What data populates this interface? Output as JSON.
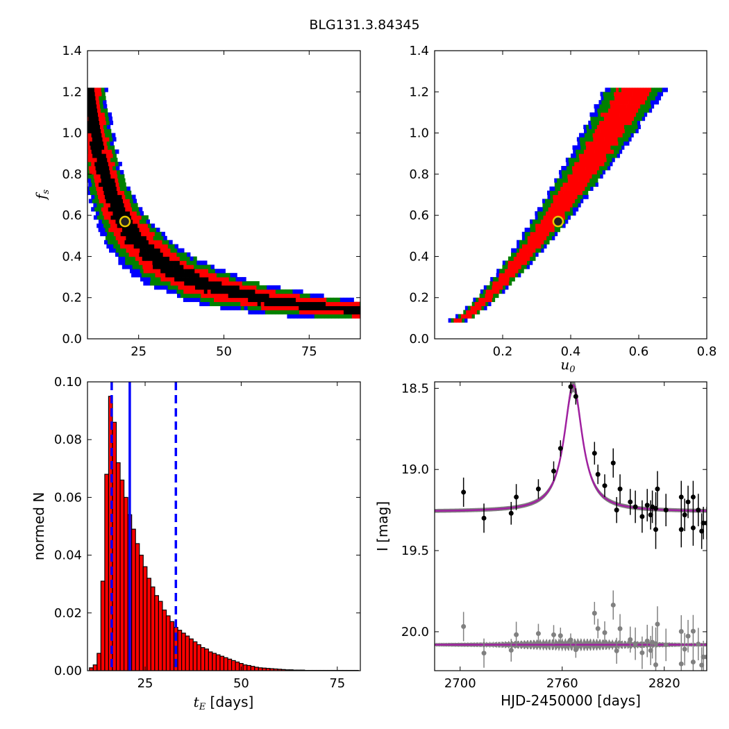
{
  "title": "BLG131.3.84345",
  "colors": {
    "sigma1": "#000000",
    "sigma2": "#ff0000",
    "sigma3": "#008000",
    "sigma4": "#0000ff",
    "bestfit_face": "#222222",
    "bestfit_edge": "#e8c800",
    "hist_bar": "#ff0000",
    "median_line": "#0000ff",
    "data": "#000000",
    "model_fill": "#808080",
    "model_line": "#a020a0",
    "residual": "#808080"
  },
  "chart_data": [
    {
      "id": "fs_vs_tE",
      "type": "heatmap",
      "xlabel": "",
      "ylabel": "f",
      "ylabel_sub": "s",
      "xlim": [
        10,
        90
      ],
      "ylim": [
        0.0,
        1.4
      ],
      "xticks": [
        "25",
        "50",
        "75"
      ],
      "xtick_values": [
        25,
        50,
        75
      ],
      "yticks": [
        "0.0",
        "0.2",
        "0.4",
        "0.6",
        "0.8",
        "1.0",
        "1.2",
        "1.4"
      ],
      "ytick_values": [
        0.0,
        0.2,
        0.4,
        0.6,
        0.8,
        1.0,
        1.2,
        1.4
      ],
      "relation": "f_s ≈ 11.4 / t_E (hyperbolic)",
      "fs_range": [
        0.08,
        1.2
      ],
      "confidence_levels": [
        "1σ (black)",
        "2σ (red)",
        "3σ (green)",
        ">3σ (blue)"
      ],
      "best_fit": {
        "x": 21,
        "y": 0.57
      }
    },
    {
      "id": "fs_vs_u0",
      "type": "heatmap",
      "xlabel": "u",
      "xlabel_sub": "0",
      "ylabel": "",
      "xlim": [
        0.0,
        0.8
      ],
      "ylim": [
        0.0,
        1.4
      ],
      "xticks": [
        "0.2",
        "0.4",
        "0.6",
        "0.8"
      ],
      "xtick_values": [
        0.2,
        0.4,
        0.6,
        0.8
      ],
      "yticks": [
        "0.0",
        "0.2",
        "0.4",
        "0.6",
        "0.8",
        "1.0",
        "1.2",
        "1.4"
      ],
      "ytick_values": [
        0.0,
        0.2,
        0.4,
        0.6,
        0.8,
        1.0,
        1.2,
        1.4
      ],
      "relation": "monotonic increasing, u0 0.06→0.68 as f_s 0.08→1.2",
      "fs_range": [
        0.08,
        1.2
      ],
      "best_fit": {
        "x": 0.363,
        "y": 0.57
      }
    },
    {
      "id": "tE_histogram",
      "type": "bar",
      "xlabel": "t",
      "xlabel_sub": "E",
      "xlabel_suffix": "[days]",
      "ylabel": "normed N",
      "xlim": [
        10,
        81
      ],
      "ylim": [
        0.0,
        0.1
      ],
      "xticks": [
        "25",
        "50",
        "75"
      ],
      "xtick_values": [
        25,
        50,
        75
      ],
      "yticks": [
        "0.00",
        "0.02",
        "0.04",
        "0.06",
        "0.08",
        "0.10"
      ],
      "ytick_values": [
        0.0,
        0.02,
        0.04,
        0.06,
        0.08,
        0.1
      ],
      "bin_start": 10.5,
      "bin_width": 1.0,
      "values": [
        0.001,
        0.002,
        0.006,
        0.031,
        0.068,
        0.095,
        0.086,
        0.072,
        0.066,
        0.06,
        0.054,
        0.049,
        0.044,
        0.04,
        0.036,
        0.032,
        0.029,
        0.026,
        0.024,
        0.021,
        0.019,
        0.017,
        0.015,
        0.014,
        0.013,
        0.012,
        0.011,
        0.01,
        0.009,
        0.008,
        0.0075,
        0.0065,
        0.006,
        0.0055,
        0.005,
        0.0045,
        0.004,
        0.0035,
        0.003,
        0.0025,
        0.002,
        0.0018,
        0.0015,
        0.0012,
        0.001,
        0.0009,
        0.0008,
        0.0007,
        0.0006,
        0.0005,
        0.0004,
        0.0003,
        0.0003,
        0.0002,
        0.0002,
        0.0002,
        0.0001,
        0.0001,
        0.0001,
        0.0001,
        0.0001,
        0.0001,
        0.0001,
        0.0001,
        0.0001,
        0.0001,
        0.0001,
        0.0001,
        0.0001,
        0.0001
      ],
      "median": 21.0,
      "interval": [
        16.3,
        33.0
      ]
    },
    {
      "id": "lightcurve",
      "type": "scatter",
      "xlabel": "HJD-2450000 [days]",
      "ylabel": "I [mag]",
      "xlim": [
        2685,
        2845
      ],
      "ylim": [
        20.24,
        18.46
      ],
      "xticks": [
        "2700",
        "2760",
        "2820"
      ],
      "xtick_values": [
        2700,
        2760,
        2820
      ],
      "yticks": [
        "18.5",
        "19.0",
        "19.5",
        "20.0"
      ],
      "ytick_values": [
        18.5,
        19.0,
        19.5,
        20.0
      ],
      "model": {
        "baseline": 19.26,
        "t0": 2766.5,
        "peak_mag": 18.48,
        "width": 6.5
      },
      "residual_offset": 20.08,
      "data": [
        {
          "t": 2702,
          "m": 19.14,
          "e": 0.09
        },
        {
          "t": 2714,
          "m": 19.3,
          "e": 0.09
        },
        {
          "t": 2730,
          "m": 19.27,
          "e": 0.07
        },
        {
          "t": 2733,
          "m": 19.17,
          "e": 0.08
        },
        {
          "t": 2746,
          "m": 19.12,
          "e": 0.06
        },
        {
          "t": 2755,
          "m": 19.01,
          "e": 0.06
        },
        {
          "t": 2759,
          "m": 18.87,
          "e": 0.05
        },
        {
          "t": 2765,
          "m": 18.49,
          "e": 0.04
        },
        {
          "t": 2768,
          "m": 18.55,
          "e": 0.05
        },
        {
          "t": 2779,
          "m": 18.9,
          "e": 0.07
        },
        {
          "t": 2781,
          "m": 19.03,
          "e": 0.06
        },
        {
          "t": 2785,
          "m": 19.1,
          "e": 0.07
        },
        {
          "t": 2790,
          "m": 18.96,
          "e": 0.09
        },
        {
          "t": 2792,
          "m": 19.25,
          "e": 0.08
        },
        {
          "t": 2794,
          "m": 19.12,
          "e": 0.09
        },
        {
          "t": 2800,
          "m": 19.2,
          "e": 0.08
        },
        {
          "t": 2803,
          "m": 19.23,
          "e": 0.1
        },
        {
          "t": 2807,
          "m": 19.29,
          "e": 0.1
        },
        {
          "t": 2810,
          "m": 19.22,
          "e": 0.1
        },
        {
          "t": 2812,
          "m": 19.28,
          "e": 0.09
        },
        {
          "t": 2813,
          "m": 19.23,
          "e": 0.1
        },
        {
          "t": 2815,
          "m": 19.24,
          "e": 0.1
        },
        {
          "t": 2815,
          "m": 19.37,
          "e": 0.12
        },
        {
          "t": 2816,
          "m": 19.12,
          "e": 0.11
        },
        {
          "t": 2821,
          "m": 19.25,
          "e": 0.1
        },
        {
          "t": 2830,
          "m": 19.17,
          "e": 0.1
        },
        {
          "t": 2830,
          "m": 19.37,
          "e": 0.11
        },
        {
          "t": 2832,
          "m": 19.28,
          "e": 0.1
        },
        {
          "t": 2834,
          "m": 19.2,
          "e": 0.1
        },
        {
          "t": 2837,
          "m": 19.17,
          "e": 0.1
        },
        {
          "t": 2837,
          "m": 19.36,
          "e": 0.11
        },
        {
          "t": 2840,
          "m": 19.25,
          "e": 0.1
        },
        {
          "t": 2842,
          "m": 19.38,
          "e": 0.11
        },
        {
          "t": 2843,
          "m": 19.33,
          "e": 0.1
        },
        {
          "t": 2845,
          "m": 19.33,
          "e": 0.1
        }
      ]
    }
  ]
}
